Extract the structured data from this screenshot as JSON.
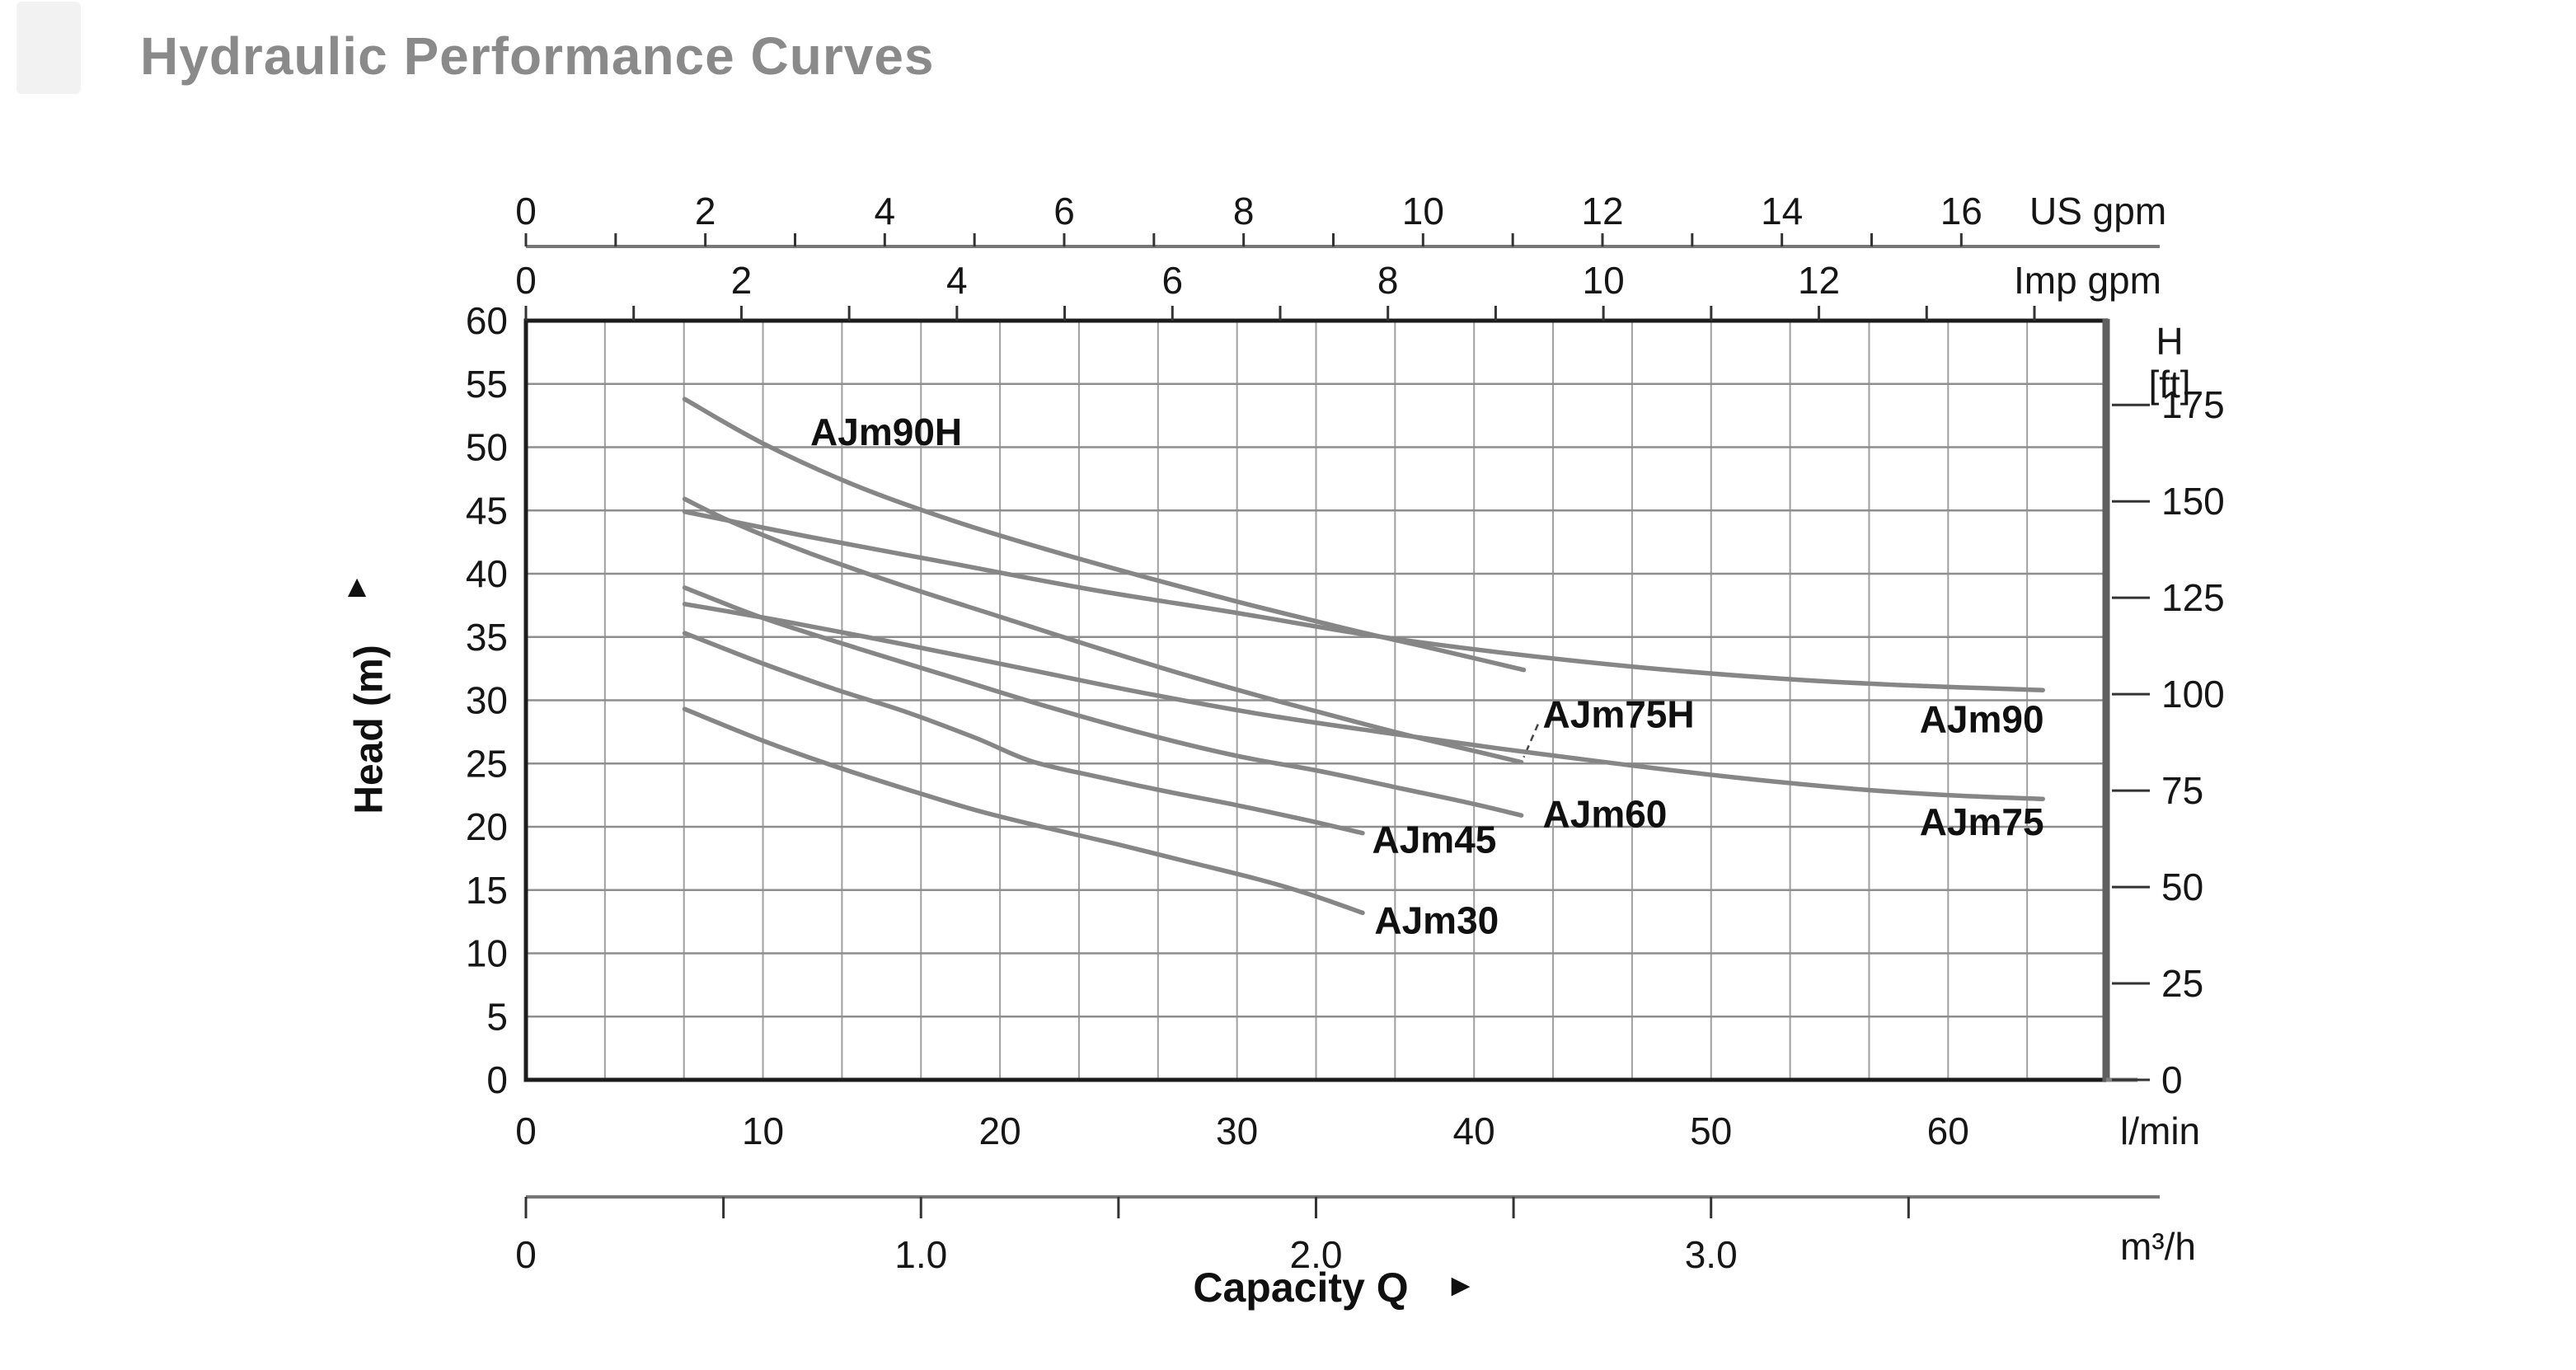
{
  "title": {
    "text": "Hydraulic Performance Curves",
    "color": "#8a8a8a"
  },
  "chart_data": {
    "type": "line",
    "title": "Hydraulic Performance Curves",
    "xlabel": "Capacity Q",
    "xlabel_arrow": "►",
    "ylabel": "Head (m)",
    "ylabel_arrow": "▲",
    "x_range_lmin": [
      0,
      66.67
    ],
    "y_range_m": [
      0,
      60
    ],
    "grid": {
      "x_step_lmin": 3.3333,
      "y_step_m": 5,
      "grid_on": true
    },
    "axes": {
      "us_gpm": {
        "unit": "US gpm",
        "tick_step": 1,
        "tick_max": 16,
        "label_values": [
          0,
          2,
          4,
          6,
          8,
          10,
          12,
          14,
          16
        ],
        "lmin_per_unit": 3.785
      },
      "imp_gpm": {
        "unit": "Imp gpm",
        "tick_step": 1,
        "tick_max": 14,
        "label_values": [
          0,
          2,
          4,
          6,
          8,
          10,
          12
        ],
        "lmin_per_unit": 4.546
      },
      "head_m": {
        "unit": "Head (m)",
        "label_values": [
          0,
          5,
          10,
          15,
          20,
          25,
          30,
          35,
          40,
          45,
          50,
          55,
          60
        ]
      },
      "head_ft": {
        "unit_line1": "H",
        "unit_line2": "[ft]",
        "label_values": [
          175,
          150,
          125,
          100,
          75,
          50,
          25,
          0
        ],
        "m_per_unit": 0.3048
      },
      "lmin": {
        "unit": "l/min",
        "label_values": [
          0,
          10,
          20,
          30,
          40,
          50,
          60
        ]
      },
      "m3h": {
        "unit": "m³/h",
        "tick_step": 0.5,
        "tick_max": 3.5,
        "label_values": [
          "0",
          "1.0",
          "2.0",
          "3.0"
        ],
        "lmin_per_unit": 16.667
      }
    },
    "series": [
      {
        "name": "AJm90H",
        "points": [
          [
            6.7,
            53.8
          ],
          [
            10,
            50.3
          ],
          [
            14,
            46.9
          ],
          [
            18,
            44.2
          ],
          [
            22,
            41.9
          ],
          [
            26,
            39.8
          ],
          [
            30,
            37.8
          ],
          [
            33,
            36.4
          ],
          [
            35.4,
            35.3
          ],
          [
            38,
            34.2
          ],
          [
            42.1,
            32.4
          ]
        ],
        "label": {
          "text": "AJm90H",
          "q": 12.0,
          "h": 51.2
        }
      },
      {
        "name": "AJm90",
        "points": [
          [
            6.7,
            44.9
          ],
          [
            12,
            42.9
          ],
          [
            18,
            40.8
          ],
          [
            24,
            38.7
          ],
          [
            30,
            36.9
          ],
          [
            35.4,
            35.2
          ],
          [
            41,
            33.8
          ],
          [
            47,
            32.6
          ],
          [
            53,
            31.7
          ],
          [
            58,
            31.2
          ],
          [
            64,
            30.8
          ]
        ],
        "label": {
          "text": "AJm90",
          "q": 58.8,
          "h": 28.5
        }
      },
      {
        "name": "AJm75H",
        "points": [
          [
            6.7,
            45.9
          ],
          [
            8.8,
            44.0
          ],
          [
            12,
            41.6
          ],
          [
            16,
            39.0
          ],
          [
            20,
            36.6
          ],
          [
            24,
            34.2
          ],
          [
            28,
            31.9
          ],
          [
            32,
            29.8
          ],
          [
            35,
            28.3
          ],
          [
            37.5,
            27.1
          ],
          [
            40,
            26.0
          ],
          [
            42,
            25.1
          ]
        ],
        "label": {
          "text": "AJm75H",
          "q": 42.9,
          "h": 28.9
        },
        "leader": {
          "from_q": 42.7,
          "from_h": 28.1,
          "to_q": 42.1,
          "to_h": 25.5
        }
      },
      {
        "name": "AJm75",
        "points": [
          [
            6.7,
            37.6
          ],
          [
            11,
            36.2
          ],
          [
            16,
            34.4
          ],
          [
            21,
            32.5
          ],
          [
            26,
            30.6
          ],
          [
            31,
            28.9
          ],
          [
            36,
            27.5
          ],
          [
            41,
            26.2
          ],
          [
            46,
            25.0
          ],
          [
            51,
            23.9
          ],
          [
            56,
            23.0
          ],
          [
            60,
            22.5
          ],
          [
            64,
            22.2
          ]
        ],
        "label": {
          "text": "AJm75",
          "q": 58.8,
          "h": 20.4
        }
      },
      {
        "name": "AJm60",
        "points": [
          [
            6.7,
            38.9
          ],
          [
            10,
            36.5
          ],
          [
            14,
            34.1
          ],
          [
            18,
            31.8
          ],
          [
            22,
            29.5
          ],
          [
            26,
            27.4
          ],
          [
            30,
            25.6
          ],
          [
            33.5,
            24.4
          ],
          [
            37,
            23.0
          ],
          [
            40,
            21.8
          ],
          [
            42,
            20.9
          ]
        ],
        "label": {
          "text": "AJm60",
          "q": 42.9,
          "h": 21.0
        }
      },
      {
        "name": "AJm45",
        "points": [
          [
            6.7,
            35.3
          ],
          [
            10,
            32.9
          ],
          [
            13,
            30.9
          ],
          [
            16,
            29.1
          ],
          [
            19,
            27.0
          ],
          [
            21.3,
            25.2
          ],
          [
            24,
            24.0
          ],
          [
            27,
            22.8
          ],
          [
            30,
            21.7
          ],
          [
            33,
            20.5
          ],
          [
            35.3,
            19.5
          ]
        ],
        "label": {
          "text": "AJm45",
          "q": 35.7,
          "h": 19.0
        }
      },
      {
        "name": "AJm30",
        "points": [
          [
            6.7,
            29.3
          ],
          [
            10,
            26.8
          ],
          [
            13,
            24.8
          ],
          [
            16,
            23.0
          ],
          [
            19,
            21.3
          ],
          [
            22,
            19.9
          ],
          [
            25,
            18.6
          ],
          [
            28,
            17.2
          ],
          [
            31,
            15.8
          ],
          [
            33,
            14.7
          ],
          [
            35.3,
            13.2
          ]
        ],
        "label": {
          "text": "AJm30",
          "q": 35.8,
          "h": 12.6
        }
      }
    ],
    "legend_position": "labels-on-curves",
    "style": {
      "curve_color": "#868686",
      "grid_color_v": "#a0a0a0",
      "grid_color_h": "#8e8e8e",
      "axis_color": "#1c1c1c",
      "tick_color": "#333333",
      "label_color": "#111111",
      "secondary_axis_color": "#777777",
      "right_edge_color": "#606060"
    }
  }
}
